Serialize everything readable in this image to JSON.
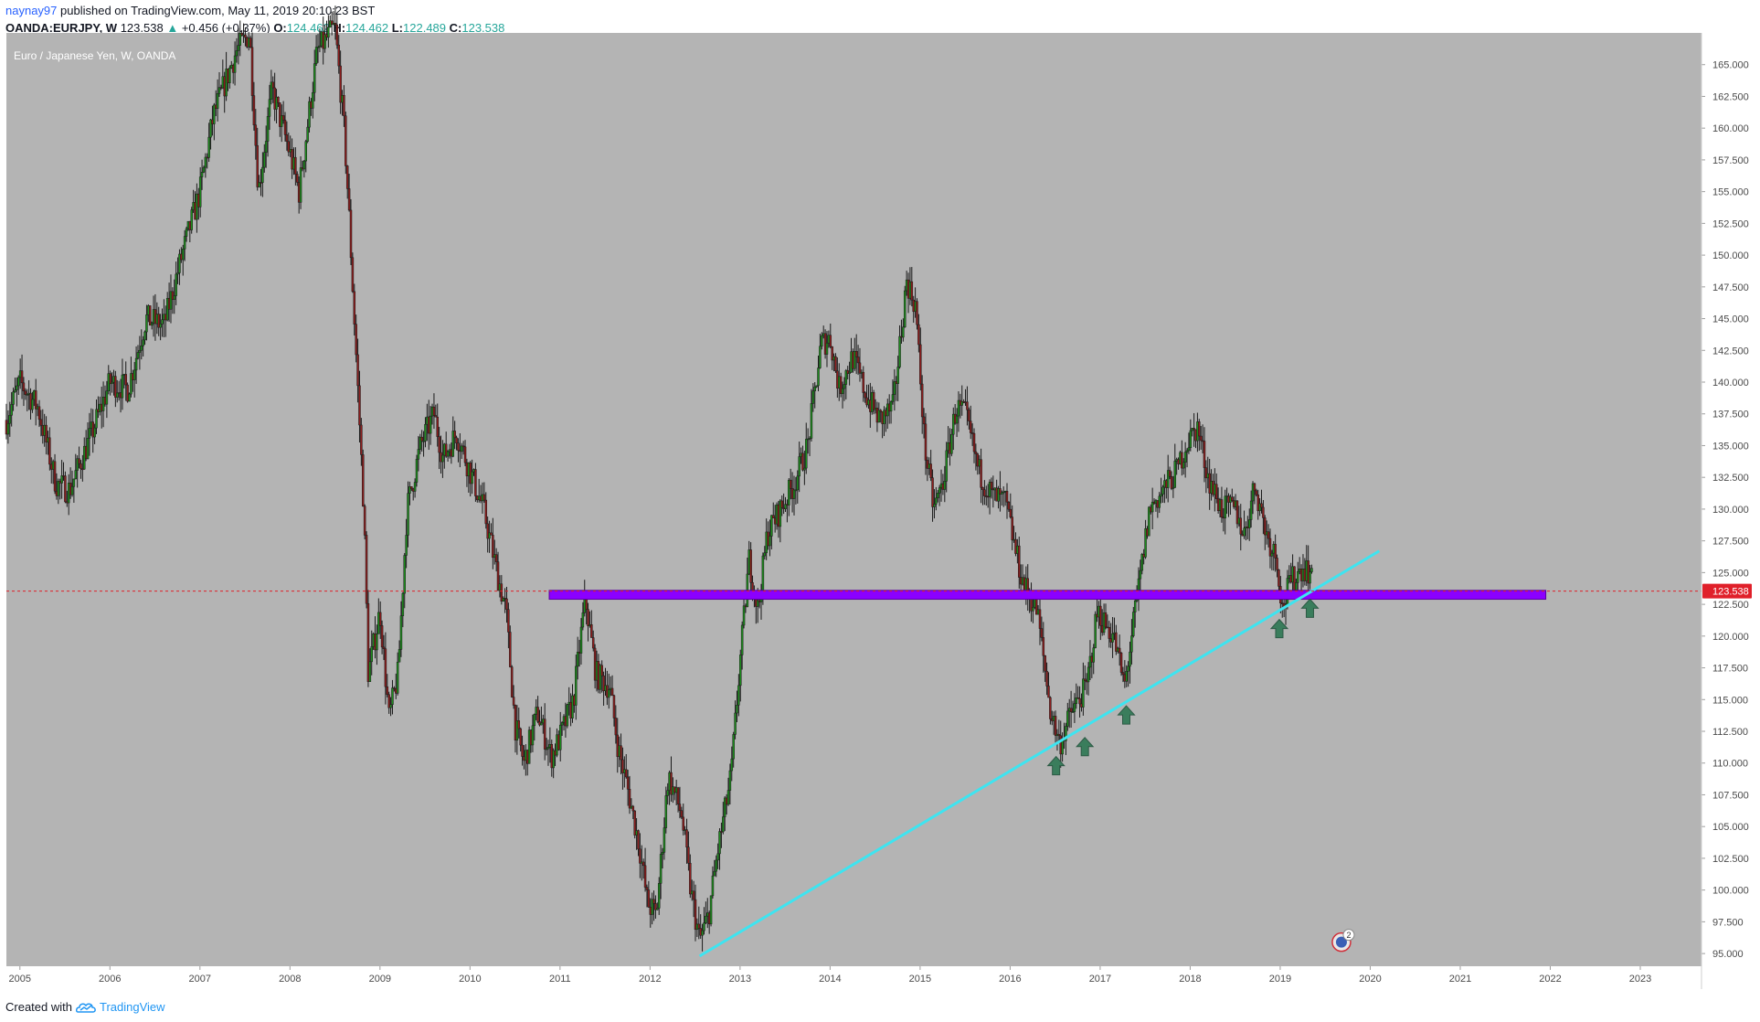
{
  "header": {
    "username": "naynay97",
    "published_text": "published on TradingView.com, May 11, 2019 20:10:23 BST",
    "symbol": "OANDA:EURJPY, W",
    "price": "123.538",
    "change": "+0.456 (+0.37%)",
    "open_label": "O:",
    "open": "124.462",
    "high_label": "H:",
    "high": "124.462",
    "low_label": "L:",
    "low": "122.489",
    "close_label": "C:",
    "close": "123.538"
  },
  "footer": {
    "created_with": "Created with",
    "brand": "TradingView"
  },
  "colors": {
    "background": "#b4b4b4",
    "bull": "#1e8c1e",
    "bear": "#8c1e1e",
    "wick": "#1a1a1a",
    "zone": "#8b00ff",
    "trendline": "#3ee4f0",
    "arrow": "#3a7d5c",
    "last_price": "#e0202a"
  },
  "chart_data": {
    "type": "candlestick",
    "title": "Euro / Japanese Yen, W, OANDA",
    "ylim": [
      94.0,
      167.5
    ],
    "xlim": [
      2004.85,
      2023.68
    ],
    "y_ticks": [
      95.0,
      97.5,
      100.0,
      102.5,
      105.0,
      107.5,
      110.0,
      112.5,
      115.0,
      117.5,
      120.0,
      122.5,
      125.0,
      127.5,
      130.0,
      132.5,
      135.0,
      137.5,
      140.0,
      142.5,
      145.0,
      147.5,
      150.0,
      152.5,
      155.0,
      157.5,
      160.0,
      162.5,
      165.0
    ],
    "x_ticks": [
      "2005",
      "2006",
      "2007",
      "2008",
      "2009",
      "2010",
      "2011",
      "2012",
      "2013",
      "2014",
      "2015",
      "2016",
      "2017",
      "2018",
      "2019",
      "2020",
      "2021",
      "2022",
      "2023"
    ],
    "last_price": 123.538,
    "price_path": [
      [
        2004.85,
        137.0
      ],
      [
        2005.0,
        140.0
      ],
      [
        2005.2,
        138.0
      ],
      [
        2005.4,
        132.0
      ],
      [
        2005.55,
        131.5
      ],
      [
        2005.8,
        136.0
      ],
      [
        2006.0,
        140.0
      ],
      [
        2006.2,
        139.5
      ],
      [
        2006.4,
        145.0
      ],
      [
        2006.6,
        144.5
      ],
      [
        2006.8,
        150.0
      ],
      [
        2007.0,
        155.0
      ],
      [
        2007.15,
        161.0
      ],
      [
        2007.4,
        166.0
      ],
      [
        2007.55,
        167.5
      ],
      [
        2007.65,
        155.0
      ],
      [
        2007.8,
        163.0
      ],
      [
        2008.0,
        158.0
      ],
      [
        2008.1,
        155.0
      ],
      [
        2008.3,
        166.0
      ],
      [
        2008.5,
        168.0
      ],
      [
        2008.6,
        160.0
      ],
      [
        2008.65,
        154.0
      ],
      [
        2008.75,
        140.0
      ],
      [
        2008.82,
        130.0
      ],
      [
        2008.87,
        117.0
      ],
      [
        2009.0,
        122.0
      ],
      [
        2009.1,
        113.5
      ],
      [
        2009.2,
        117.0
      ],
      [
        2009.3,
        130.0
      ],
      [
        2009.45,
        135.0
      ],
      [
        2009.6,
        137.5
      ],
      [
        2009.7,
        134.0
      ],
      [
        2009.85,
        136.0
      ],
      [
        2010.0,
        133.0
      ],
      [
        2010.15,
        130.0
      ],
      [
        2010.3,
        125.0
      ],
      [
        2010.4,
        122.0
      ],
      [
        2010.5,
        113.0
      ],
      [
        2010.6,
        110.0
      ],
      [
        2010.75,
        114.0
      ],
      [
        2010.9,
        110.5
      ],
      [
        2011.0,
        112.0
      ],
      [
        2011.15,
        115.0
      ],
      [
        2011.28,
        123.0
      ],
      [
        2011.4,
        117.0
      ],
      [
        2011.55,
        116.0
      ],
      [
        2011.65,
        111.0
      ],
      [
        2011.75,
        108.0
      ],
      [
        2011.88,
        103.5
      ],
      [
        2011.97,
        99.0
      ],
      [
        2012.07,
        98.0
      ],
      [
        2012.2,
        109.0
      ],
      [
        2012.35,
        106.0
      ],
      [
        2012.45,
        100.0
      ],
      [
        2012.55,
        96.0
      ],
      [
        2012.65,
        98.0
      ],
      [
        2012.75,
        103.0
      ],
      [
        2012.9,
        109.0
      ],
      [
        2013.0,
        118.0
      ],
      [
        2013.1,
        126.0
      ],
      [
        2013.2,
        122.0
      ],
      [
        2013.3,
        128.0
      ],
      [
        2013.45,
        130.0
      ],
      [
        2013.6,
        132.0
      ],
      [
        2013.75,
        135.0
      ],
      [
        2013.9,
        143.0
      ],
      [
        2014.0,
        143.5
      ],
      [
        2014.1,
        139.5
      ],
      [
        2014.25,
        142.0
      ],
      [
        2014.4,
        139.0
      ],
      [
        2014.55,
        137.0
      ],
      [
        2014.7,
        138.0
      ],
      [
        2014.85,
        148.0
      ],
      [
        2014.95,
        146.0
      ],
      [
        2015.05,
        135.0
      ],
      [
        2015.15,
        130.0
      ],
      [
        2015.25,
        132.0
      ],
      [
        2015.4,
        138.0
      ],
      [
        2015.5,
        137.5
      ],
      [
        2015.65,
        133.0
      ],
      [
        2015.8,
        131.0
      ],
      [
        2015.95,
        130.5
      ],
      [
        2016.05,
        127.0
      ],
      [
        2016.15,
        124.0
      ],
      [
        2016.3,
        122.0
      ],
      [
        2016.45,
        114.0
      ],
      [
        2016.55,
        111.5
      ],
      [
        2016.68,
        114.0
      ],
      [
        2016.85,
        116.0
      ],
      [
        2016.97,
        122.0
      ],
      [
        2017.05,
        121.0
      ],
      [
        2017.15,
        120.0
      ],
      [
        2017.27,
        116.0
      ],
      [
        2017.35,
        120.0
      ],
      [
        2017.45,
        125.0
      ],
      [
        2017.55,
        130.0
      ],
      [
        2017.7,
        131.5
      ],
      [
        2017.85,
        133.0
      ],
      [
        2017.95,
        135.0
      ],
      [
        2018.08,
        136.5
      ],
      [
        2018.2,
        132.5
      ],
      [
        2018.35,
        130.0
      ],
      [
        2018.5,
        130.0
      ],
      [
        2018.6,
        128.0
      ],
      [
        2018.72,
        132.0
      ],
      [
        2018.85,
        128.0
      ],
      [
        2018.97,
        126.0
      ],
      [
        2019.02,
        122.0
      ],
      [
        2019.1,
        124.0
      ],
      [
        2019.25,
        125.5
      ],
      [
        2019.34,
        125.0
      ],
      [
        2019.36,
        123.5
      ]
    ],
    "horizontal_zone": {
      "x": [
        2010.88,
        2021.95
      ],
      "y": [
        122.9,
        123.6
      ]
    },
    "trendline": {
      "points": [
        [
          2012.55,
          94.8
        ],
        [
          2020.1,
          126.7
        ]
      ]
    },
    "up_arrows": [
      {
        "x": 2016.51,
        "y": 110.8
      },
      {
        "x": 2016.83,
        "y": 112.3
      },
      {
        "x": 2017.29,
        "y": 114.8
      },
      {
        "x": 2018.99,
        "y": 121.6
      },
      {
        "x": 2019.33,
        "y": 123.2
      }
    ],
    "marker_badge": "2"
  }
}
